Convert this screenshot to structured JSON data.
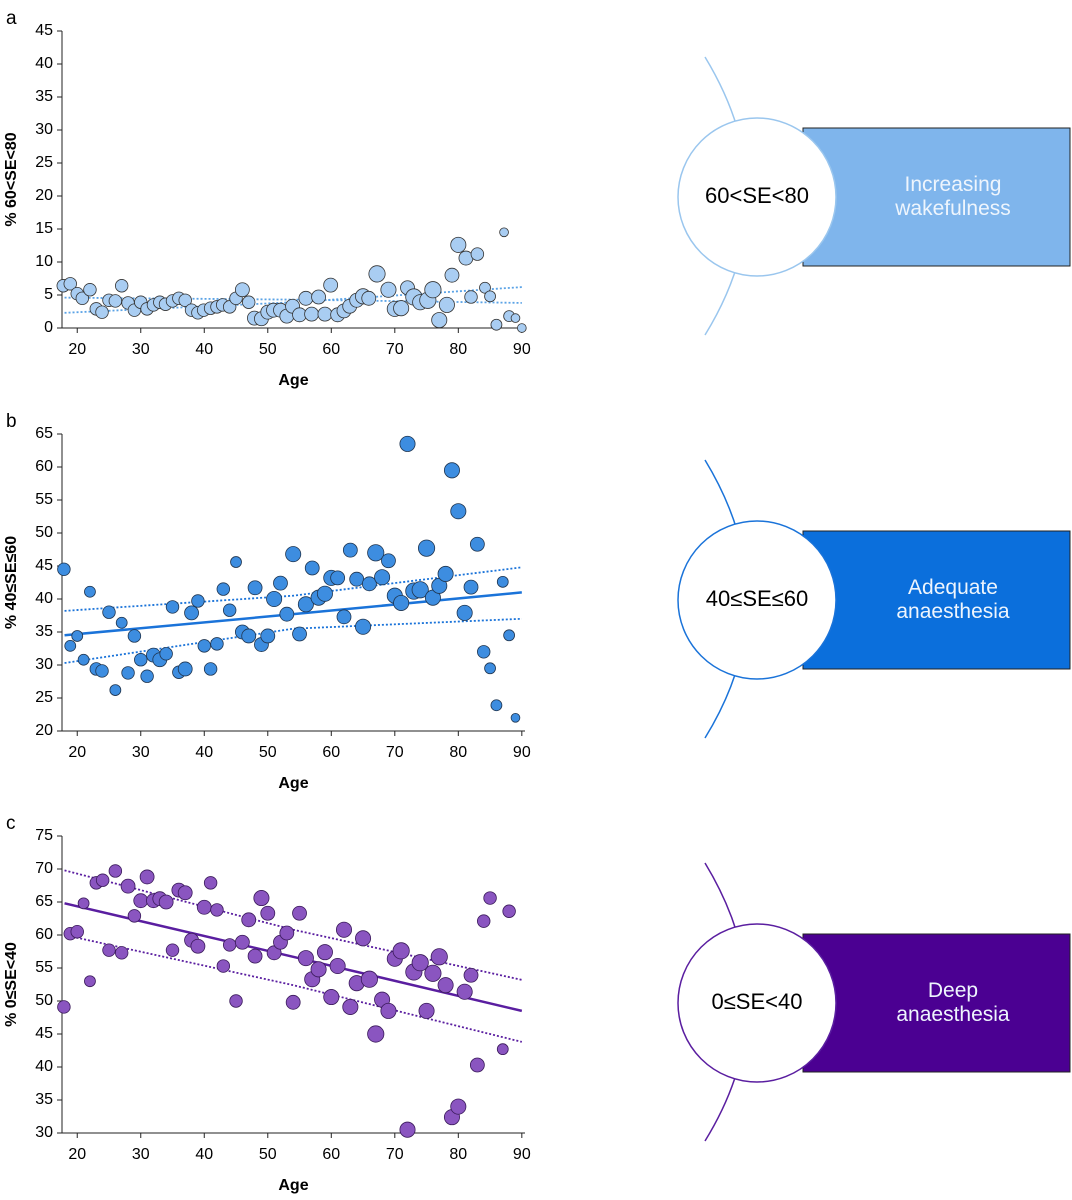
{
  "chart_data": [
    {
      "type": "scatter",
      "panel": "a",
      "xlabel": "Age",
      "ylabel": "% 60<SE<80",
      "xlim": [
        17.6,
        90.5
      ],
      "ylim": [
        0,
        45
      ],
      "xticks": [
        20,
        30,
        40,
        50,
        60,
        70,
        80,
        90
      ],
      "yticks": [
        0,
        5,
        10,
        15,
        20,
        25,
        30,
        35,
        40,
        45
      ],
      "color": "#a9cdf2",
      "edge_color": "#333333",
      "line_color": "#5ba3e6",
      "x": [
        17.8,
        18.9,
        20,
        20.8,
        22,
        23,
        23.9,
        25,
        26,
        27,
        28,
        29,
        30,
        31,
        32,
        33,
        33.9,
        35,
        36,
        37,
        38,
        39,
        39.9,
        41,
        42,
        42.9,
        44,
        45,
        46,
        47,
        47.9,
        49,
        50,
        50.9,
        52,
        53,
        53.9,
        55,
        56,
        56.9,
        58,
        59,
        59.9,
        61,
        62,
        62.9,
        64,
        65,
        65.9,
        67.2,
        69,
        70,
        71,
        72,
        73,
        74,
        75.2,
        76,
        77,
        78.2,
        79,
        80,
        81.2,
        82,
        83,
        84.2,
        85,
        86,
        87.2,
        88,
        89,
        90
      ],
      "values": [
        6.4,
        6.7,
        5.2,
        4.5,
        5.8,
        2.9,
        2.4,
        4.2,
        4.1,
        6.4,
        3.8,
        2.7,
        3.9,
        2.9,
        3.5,
        3.9,
        3.6,
        4.1,
        4.5,
        4.2,
        2.7,
        2.3,
        2.7,
        3.0,
        3.2,
        3.5,
        3.2,
        4.5,
        5.8,
        3.9,
        1.5,
        1.4,
        2.4,
        2.7,
        2.7,
        1.8,
        3.3,
        2.0,
        4.5,
        2.1,
        4.7,
        2.1,
        6.5,
        2.0,
        2.6,
        3.3,
        4.2,
        4.8,
        4.5,
        8.2,
        5.8,
        2.9,
        3.0,
        6.1,
        4.7,
        3.9,
        4.2,
        5.8,
        1.2,
        3.5,
        8.0,
        12.6,
        10.6,
        4.7,
        11.2,
        6.1,
        4.8,
        0.5,
        14.5,
        1.8,
        1.5,
        0
      ],
      "sizes": [
        3,
        3,
        3,
        3,
        3,
        3,
        3,
        3,
        3,
        3,
        3,
        3,
        3,
        3,
        3,
        3,
        3,
        3,
        3,
        3,
        3,
        3,
        3,
        3,
        3,
        3,
        3,
        3,
        4,
        3,
        4,
        4,
        4,
        4,
        4,
        4,
        4,
        4,
        4,
        4,
        4,
        4,
        4,
        4,
        4,
        4,
        4,
        5,
        4,
        6,
        5,
        5,
        5,
        4,
        6,
        5,
        6,
        6,
        5,
        5,
        4,
        5,
        4,
        3,
        3,
        2,
        2,
        2,
        1,
        2,
        1,
        1
      ],
      "fits": [
        {
          "style": "dotted",
          "x": [
            18,
            54,
            90
          ],
          "values": [
            2.3,
            3.9,
            6.2
          ]
        },
        {
          "style": "dotted",
          "x": [
            18,
            54,
            90
          ],
          "values": [
            4.6,
            4.3,
            3.8
          ]
        }
      ]
    },
    {
      "type": "scatter",
      "panel": "b",
      "xlabel": "Age",
      "ylabel": "% 40≤SE≤60",
      "xlim": [
        17.6,
        90.5
      ],
      "ylim": [
        20,
        65
      ],
      "xticks": [
        20,
        30,
        40,
        50,
        60,
        70,
        80,
        90
      ],
      "yticks": [
        20,
        25,
        30,
        35,
        40,
        45,
        50,
        55,
        60,
        65
      ],
      "color": "#3d8de0",
      "edge_color": "#1f3550",
      "line_color": "#1a73d9",
      "x": [
        17.9,
        18.9,
        20,
        21,
        22,
        23,
        23.9,
        25,
        26,
        27,
        28,
        29,
        30,
        31,
        32,
        33,
        34,
        35,
        36,
        37,
        38,
        39,
        40,
        41,
        42,
        43,
        44,
        45,
        46,
        47,
        48,
        49,
        50,
        51,
        52,
        53,
        54,
        55,
        56,
        57,
        58,
        59,
        60,
        61,
        62,
        63,
        64,
        65,
        66,
        67,
        68,
        69,
        70,
        71,
        72,
        73,
        74,
        75,
        76,
        77,
        78,
        79,
        80,
        81,
        82,
        83,
        84,
        85,
        86,
        87,
        88,
        89
      ],
      "values": [
        44.5,
        32.9,
        34.4,
        30.8,
        41.1,
        29.4,
        29.1,
        38,
        26.2,
        36.4,
        28.8,
        34.4,
        30.8,
        28.3,
        31.5,
        30.8,
        31.7,
        38.8,
        28.9,
        29.4,
        37.9,
        39.7,
        32.9,
        29.4,
        33.2,
        41.5,
        38.3,
        45.6,
        35,
        34.4,
        41.7,
        33.1,
        34.4,
        40,
        42.4,
        37.7,
        46.8,
        34.7,
        39.2,
        44.7,
        40.2,
        40.8,
        43.2,
        43.2,
        37.3,
        47.4,
        43.0,
        35.8,
        42.3,
        47.0,
        43.3,
        45.8,
        40.5,
        39.4,
        63.5,
        41.2,
        41.4,
        47.7,
        40.2,
        42,
        43.8,
        59.5,
        53.3,
        37.9,
        41.8,
        48.3,
        32,
        29.5,
        23.9,
        42.6,
        34.5,
        22
      ],
      "sizes": [
        3,
        2,
        2,
        2,
        2,
        3,
        3,
        3,
        2,
        2,
        3,
        3,
        3,
        3,
        4,
        4,
        3,
        3,
        3,
        4,
        4,
        3,
        3,
        3,
        3,
        3,
        3,
        2,
        4,
        4,
        4,
        4,
        4,
        5,
        4,
        4,
        5,
        4,
        5,
        4,
        5,
        5,
        5,
        4,
        4,
        4,
        4,
        5,
        4,
        6,
        5,
        4,
        5,
        5,
        5,
        6,
        6,
        6,
        5,
        5,
        5,
        5,
        5,
        5,
        4,
        4,
        3,
        2,
        2,
        2,
        2,
        1
      ],
      "fits": [
        {
          "style": "solid",
          "x": [
            18,
            54,
            90
          ],
          "values": [
            34.5,
            37.7,
            41
          ]
        },
        {
          "style": "dotted",
          "x": [
            18,
            54,
            90
          ],
          "values": [
            38.2,
            40.5,
            44.8
          ]
        },
        {
          "style": "dotted",
          "x": [
            18,
            54,
            90
          ],
          "values": [
            30.3,
            35.5,
            37.0
          ]
        }
      ]
    },
    {
      "type": "scatter",
      "panel": "c",
      "xlabel": "Age",
      "ylabel": "% 0≤SE<40",
      "xlim": [
        17.6,
        90.5
      ],
      "ylim": [
        30,
        75
      ],
      "xticks": [
        20,
        30,
        40,
        50,
        60,
        70,
        80,
        90
      ],
      "yticks": [
        30,
        35,
        40,
        45,
        50,
        55,
        60,
        65,
        70,
        75
      ],
      "color": "#8a55c0",
      "edge_color": "#3a1a5a",
      "line_color": "#5a1ea0",
      "x": [
        17.9,
        18.9,
        20,
        21,
        22,
        23,
        24,
        25,
        26,
        27,
        28,
        29,
        30,
        31,
        32,
        33,
        34,
        35,
        36,
        37,
        38,
        39,
        40,
        41,
        42,
        43,
        44,
        45,
        46,
        47,
        48,
        49,
        50,
        51,
        52,
        53,
        54,
        55,
        56,
        57,
        58,
        59,
        60,
        61,
        62,
        63,
        64,
        65,
        66,
        67,
        68,
        69,
        70,
        71,
        72,
        73,
        74,
        75,
        76,
        77,
        78,
        79,
        80,
        81,
        82,
        83,
        84,
        85,
        87,
        88
      ],
      "values": [
        49.1,
        60.2,
        60.5,
        64.8,
        53.0,
        67.9,
        68.3,
        57.7,
        69.7,
        57.3,
        67.4,
        62.9,
        65.2,
        68.8,
        65.2,
        65.5,
        65,
        57.7,
        66.8,
        66.4,
        59.2,
        58.3,
        64.2,
        67.9,
        63.8,
        55.3,
        58.5,
        50,
        58.9,
        62.3,
        56.8,
        65.6,
        63.3,
        57.3,
        58.9,
        60.3,
        49.8,
        63.3,
        56.5,
        53.3,
        54.8,
        57.4,
        50.6,
        55.3,
        60.8,
        49.1,
        52.7,
        59.5,
        53.3,
        45,
        50.2,
        48.5,
        56.4,
        57.6,
        30.5,
        54.4,
        55.8,
        48.5,
        54.2,
        56.7,
        52.4,
        32.4,
        34,
        51.4,
        53.9,
        40.3,
        62.1,
        65.6,
        42.7,
        63.6
      ],
      "sizes": [
        3,
        3,
        3,
        2,
        2,
        3,
        3,
        3,
        3,
        3,
        4,
        3,
        4,
        4,
        4,
        4,
        4,
        3,
        4,
        4,
        4,
        4,
        4,
        3,
        3,
        3,
        3,
        3,
        4,
        4,
        4,
        5,
        4,
        4,
        4,
        4,
        4,
        4,
        5,
        5,
        5,
        5,
        5,
        5,
        5,
        5,
        5,
        5,
        6,
        6,
        5,
        5,
        5,
        6,
        5,
        6,
        6,
        5,
        6,
        6,
        5,
        5,
        5,
        5,
        4,
        4,
        3,
        3,
        2,
        3
      ],
      "fits": [
        {
          "style": "solid",
          "x": [
            18,
            54,
            90
          ],
          "values": [
            64.8,
            56.7,
            48.5
          ]
        },
        {
          "style": "dotted",
          "x": [
            18,
            54,
            90
          ],
          "values": [
            69.8,
            60.8,
            53.2
          ]
        },
        {
          "style": "dotted",
          "x": [
            18,
            54,
            90
          ],
          "values": [
            60,
            52.4,
            43.8
          ]
        }
      ]
    }
  ],
  "diagrams": [
    {
      "circle_label": "60<SE<80",
      "box_label": "Increasing wakefulness",
      "box_color": "#7fb5ec",
      "line_color": "#9ac6ee"
    },
    {
      "circle_label": "40≤SE≤60",
      "box_label": "Adequate anaesthesia",
      "box_color": "#0b6fdc",
      "line_color": "#1a73d9"
    },
    {
      "circle_label": "0≤SE<40",
      "box_label": "Deep anaesthesia",
      "box_color": "#4b0092",
      "line_color": "#5a1ea0"
    }
  ]
}
